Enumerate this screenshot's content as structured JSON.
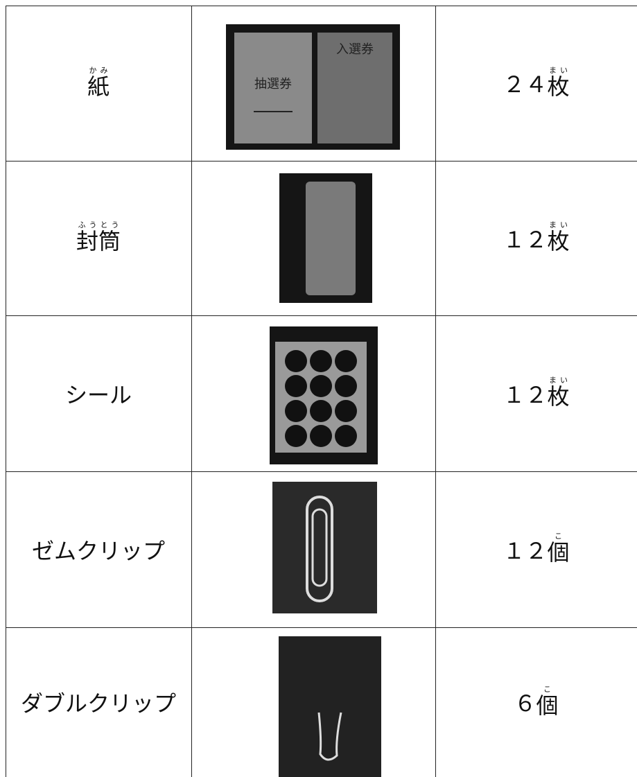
{
  "table": {
    "rows": [
      {
        "item": {
          "base": "紙",
          "ruby": "かみ"
        },
        "count": "２４",
        "counter": {
          "base": "枚",
          "ruby": "まい"
        },
        "photo_text": [
          "抽選券",
          "入選券"
        ]
      },
      {
        "item": {
          "base": "封筒",
          "ruby": "ふうとう"
        },
        "count": "１２",
        "counter": {
          "base": "枚",
          "ruby": "まい"
        }
      },
      {
        "item": {
          "base": "シール"
        },
        "count": "１２",
        "counter": {
          "base": "枚",
          "ruby": "まい"
        }
      },
      {
        "item": {
          "base": "ゼムクリップ"
        },
        "count": "１２",
        "counter": {
          "base": "個",
          "ruby": "こ"
        }
      },
      {
        "item": {
          "base": "ダブルクリップ"
        },
        "count": "６",
        "counter": {
          "base": "個",
          "ruby": "こ"
        }
      }
    ]
  }
}
